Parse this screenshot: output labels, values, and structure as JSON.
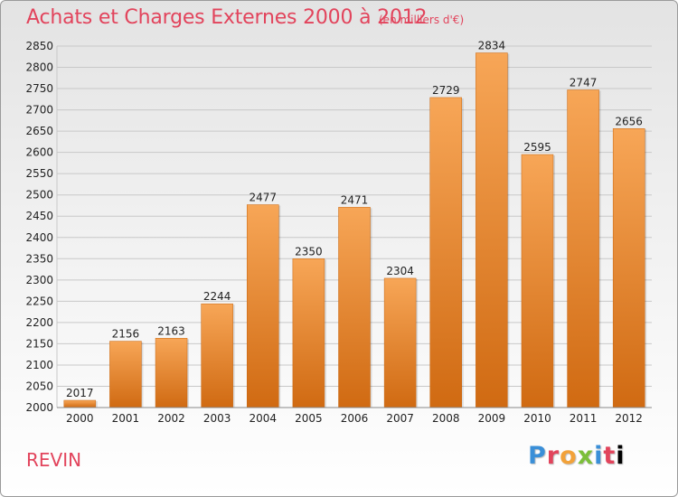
{
  "header": {
    "title": "Achats et Charges Externes 2000 à 2012",
    "subtitle": "(en milliers d'€)"
  },
  "footer": {
    "city": "REVIN",
    "brand_letters": [
      "P",
      "r",
      "o",
      "x",
      "i",
      "t",
      "i"
    ]
  },
  "colors": {
    "title": "#e2445c",
    "bar_top": "#f7a657",
    "bar_bottom": "#d06a12"
  },
  "chart_data": {
    "type": "bar",
    "title": "Achats et Charges Externes 2000 à 2012",
    "subtitle": "(en milliers d'€)",
    "categories": [
      "2000",
      "2001",
      "2002",
      "2003",
      "2004",
      "2005",
      "2006",
      "2007",
      "2008",
      "2009",
      "2010",
      "2011",
      "2012"
    ],
    "values": [
      2017,
      2156,
      2163,
      2244,
      2477,
      2350,
      2471,
      2304,
      2729,
      2834,
      2595,
      2747,
      2656
    ],
    "ylim": [
      2000,
      2850
    ],
    "yticks": [
      2000,
      2050,
      2100,
      2150,
      2200,
      2250,
      2300,
      2350,
      2400,
      2450,
      2500,
      2550,
      2600,
      2650,
      2700,
      2750,
      2800,
      2850
    ],
    "grid": true,
    "data_labels": true
  }
}
